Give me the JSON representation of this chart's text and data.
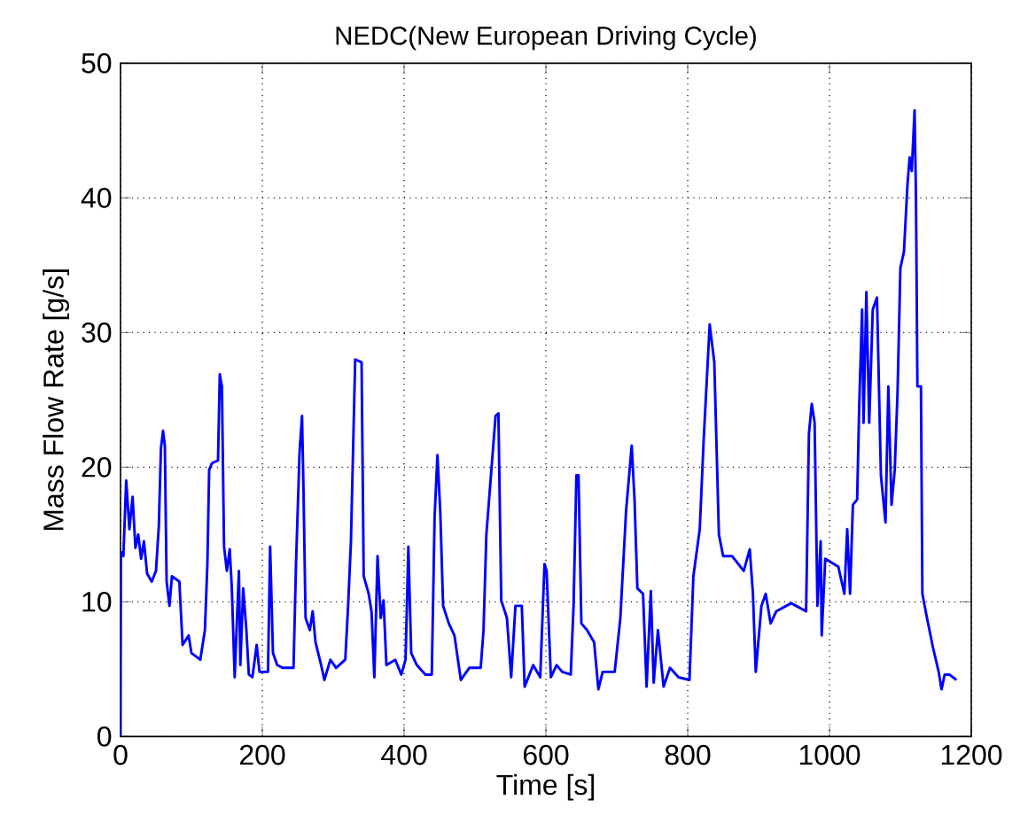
{
  "chart_data": {
    "type": "line",
    "title": "NEDC(New European Driving Cycle)",
    "xlabel": "Time [s]",
    "ylabel": "Mass Flow Rate [g/s]",
    "xlim": [
      0,
      1200
    ],
    "ylim": [
      0,
      50
    ],
    "xticks": [
      0,
      200,
      400,
      600,
      800,
      1000,
      1200
    ],
    "yticks": [
      0,
      10,
      20,
      30,
      40,
      50
    ],
    "grid": true,
    "line_style": "solid",
    "marker": "none",
    "series": [
      {
        "color": "#0000ff",
        "x": [
          0,
          0.5,
          4,
          8,
          12.5,
          17,
          21,
          25,
          29,
          33,
          37.5,
          44,
          50,
          54,
          57,
          60,
          62.5,
          65,
          69,
          72.5,
          83,
          87.5,
          96,
          100,
          112.5,
          119,
          122.5,
          125,
          129,
          137.5,
          140,
          143,
          146,
          150,
          154,
          157,
          161,
          167,
          169,
          173,
          177.5,
          181,
          186,
          192,
          196,
          208,
          211,
          215,
          221,
          229,
          244,
          247.5,
          252.5,
          256,
          258,
          261,
          267,
          271,
          275,
          283,
          287.5,
          296,
          304,
          317,
          321,
          325,
          331,
          340,
          343,
          350,
          354,
          358,
          362.5,
          367,
          371,
          375,
          387.5,
          396,
          402,
          406,
          410,
          418,
          430,
          439,
          443,
          447,
          451,
          455,
          463,
          471,
          480,
          492,
          508,
          512,
          516,
          525,
          529,
          533,
          537,
          545,
          551,
          557,
          566,
          570,
          582,
          592,
          598,
          601,
          607,
          615,
          623,
          635,
          639,
          643,
          646,
          650,
          658,
          668,
          674,
          680,
          697,
          705,
          713,
          721,
          725,
          729,
          737,
          742,
          748,
          752,
          758,
          766,
          775,
          787,
          802.5,
          808,
          817,
          822.5,
          831,
          837.5,
          844,
          850,
          862.5,
          879,
          887.5,
          892,
          896,
          904,
          910,
          917,
          925,
          946,
          967,
          971,
          975,
          979,
          983,
          987.5,
          989,
          994,
          1012.5,
          1021,
          1025,
          1029,
          1033,
          1039,
          1042,
          1046,
          1048,
          1052,
          1056,
          1061,
          1067,
          1072.5,
          1079,
          1083,
          1087.5,
          1092,
          1096,
          1100,
          1105,
          1110,
          1113,
          1116,
          1120,
          1122,
          1124,
          1129,
          1131,
          1137.5,
          1146,
          1154,
          1158,
          1162.5,
          1169,
          1179
        ],
        "values": [
          0,
          13.7,
          13.4,
          19,
          15.4,
          17.8,
          14,
          15,
          13.2,
          14.5,
          12.1,
          11.5,
          12.3,
          15.6,
          21.4,
          22.7,
          21.6,
          11.5,
          9.7,
          11.9,
          11.5,
          6.8,
          7.5,
          6.2,
          5.7,
          7.9,
          12.8,
          19.8,
          20.3,
          20.5,
          26.9,
          26,
          14.1,
          12.3,
          13.9,
          11,
          4.4,
          12.3,
          5.3,
          11,
          7.9,
          4.6,
          4.4,
          6.8,
          4.8,
          4.8,
          14.1,
          6.2,
          5.3,
          5.1,
          5.1,
          12.8,
          21.1,
          23.8,
          18.5,
          8.8,
          7.9,
          9.3,
          7,
          5.3,
          4.2,
          5.7,
          5.1,
          5.7,
          9.7,
          14.5,
          28,
          27.8,
          11.9,
          10.6,
          9.3,
          4.4,
          13.4,
          8.8,
          10.1,
          5.3,
          5.7,
          4.6,
          5.7,
          14.1,
          6.2,
          5.3,
          4.6,
          4.6,
          16.3,
          20.9,
          16.7,
          9.7,
          8.4,
          7.5,
          4.2,
          5.1,
          5.1,
          7.9,
          15,
          21.1,
          23.8,
          24,
          10.1,
          8.8,
          4.4,
          9.7,
          9.7,
          3.7,
          5.3,
          4.4,
          12.8,
          12.3,
          4.4,
          5.3,
          4.8,
          4.6,
          9.7,
          19.4,
          19.4,
          8.4,
          7.9,
          7,
          3.5,
          4.8,
          4.8,
          8.8,
          16.7,
          21.6,
          17.6,
          11,
          10.6,
          3.7,
          10.8,
          4,
          7.9,
          3.7,
          5.1,
          4.4,
          4.2,
          11.9,
          15.4,
          22,
          30.6,
          27.8,
          15,
          13.4,
          13.4,
          12.3,
          13.9,
          10.6,
          4.8,
          9.7,
          10.6,
          8.4,
          9.3,
          9.9,
          9.3,
          22.5,
          24.7,
          23.3,
          9.7,
          14.5,
          7.5,
          13.2,
          12.6,
          10.6,
          15.4,
          10.6,
          17.2,
          17.6,
          24.7,
          31.7,
          23.3,
          33,
          23.3,
          31.7,
          32.6,
          19.4,
          15.9,
          26,
          17.2,
          19.8,
          25.6,
          34.8,
          36,
          41,
          43,
          42,
          46.5,
          40,
          26,
          26,
          10.6,
          8.8,
          6.6,
          4.8,
          3.5,
          4.6,
          4.6,
          4.2
        ]
      }
    ]
  }
}
